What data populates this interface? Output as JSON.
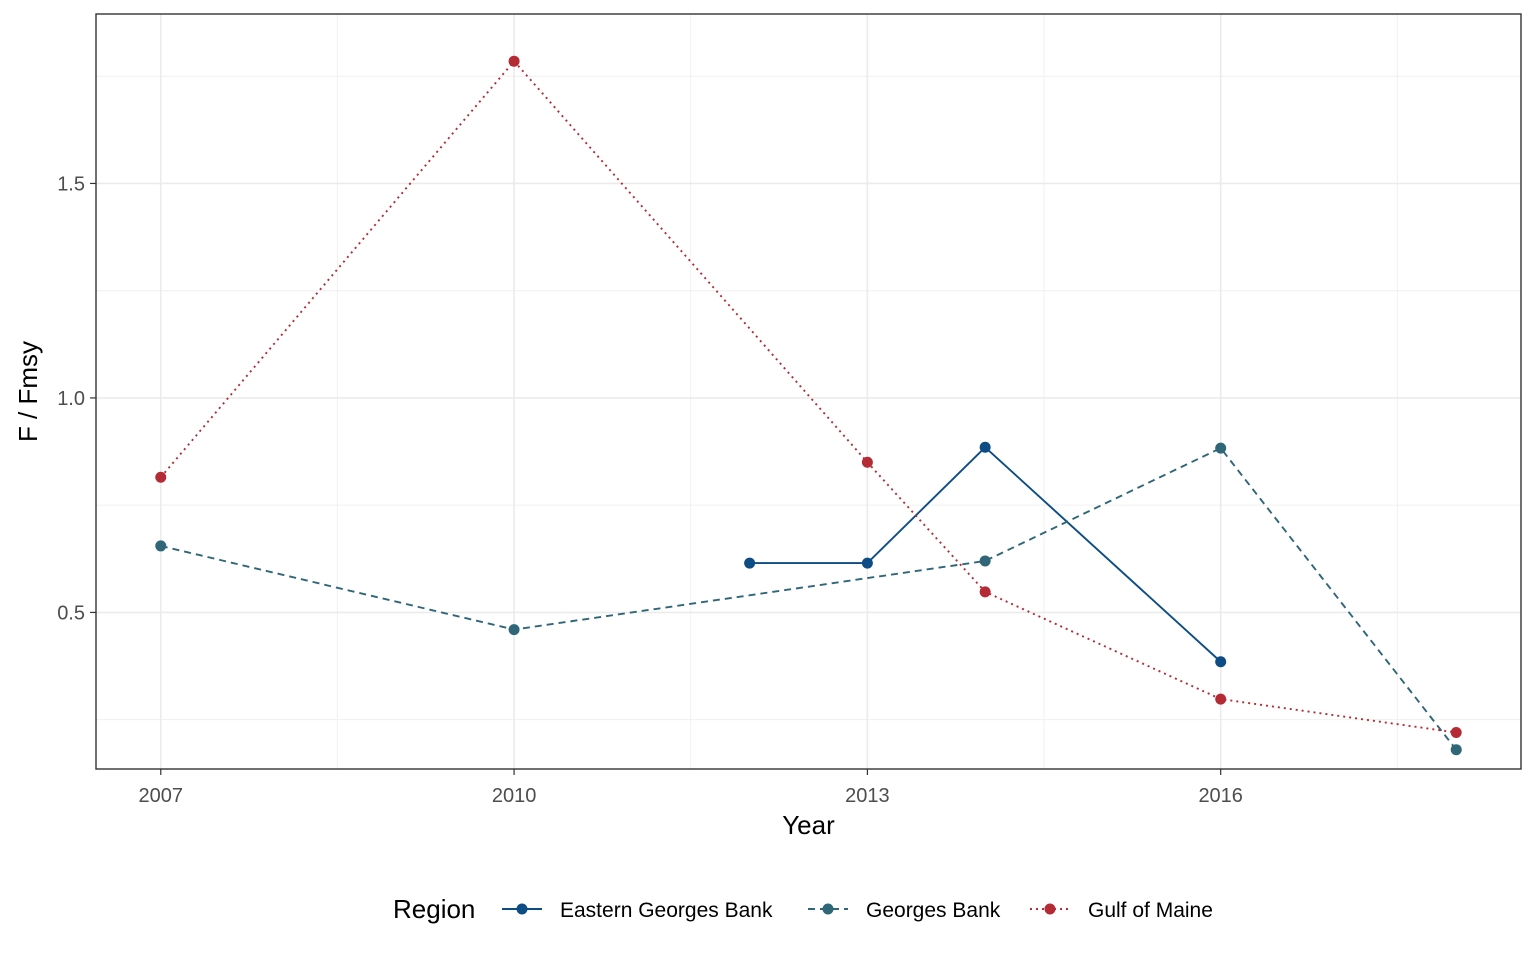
{
  "chart_data": {
    "type": "line",
    "xlabel": "Year",
    "ylabel": "F / Fmsy",
    "xlim": [
      2006.45,
      2018.55
    ],
    "ylim": [
      0.135,
      1.895
    ],
    "x_ticks": [
      2007,
      2010,
      2013,
      2016
    ],
    "x_tick_labels": [
      "2007",
      "2010",
      "2013",
      "2016"
    ],
    "x_minor_ticks": [
      2008.5,
      2011.5,
      2014.5,
      2017.5
    ],
    "y_ticks": [
      0.5,
      1.0,
      1.5
    ],
    "y_tick_labels": [
      "0.5",
      "1.0",
      "1.5"
    ],
    "y_minor_ticks": [
      0.25,
      0.75,
      1.25,
      1.75
    ],
    "grid": true,
    "legend": {
      "title": "Region",
      "position": "bottom"
    },
    "series": [
      {
        "name": "Eastern Georges Bank",
        "color": "#0d4c84",
        "linestyle": "solid",
        "x": [
          2012,
          2013,
          2014,
          2016
        ],
        "y": [
          0.615,
          0.615,
          0.885,
          0.385
        ]
      },
      {
        "name": "Georges Bank",
        "color": "#2f6678",
        "linestyle": "dashed",
        "x": [
          2007,
          2010,
          2014,
          2016,
          2018
        ],
        "y": [
          0.655,
          0.46,
          0.62,
          0.883,
          0.18
        ]
      },
      {
        "name": "Gulf of Maine",
        "color": "#b42b35",
        "linestyle": "dotted",
        "x": [
          2007,
          2010,
          2013,
          2014,
          2016,
          2018
        ],
        "y": [
          0.815,
          1.785,
          0.85,
          0.548,
          0.298,
          0.22
        ]
      }
    ]
  }
}
